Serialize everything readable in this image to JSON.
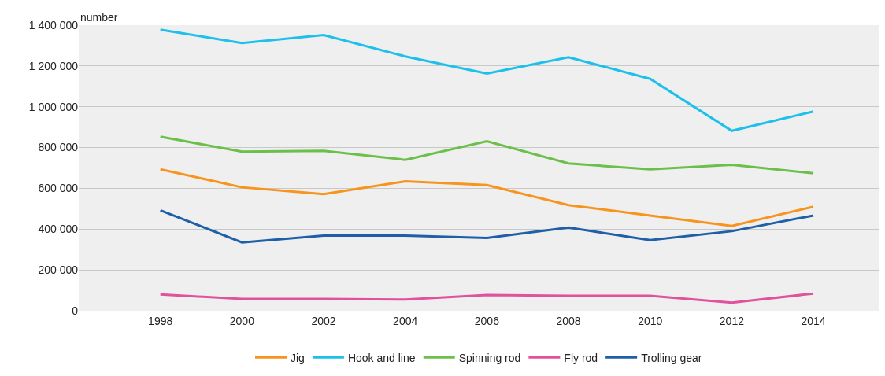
{
  "chart_data": {
    "type": "line",
    "ylabel": "number",
    "x": [
      1998,
      2000,
      2002,
      2004,
      2006,
      2008,
      2010,
      2012,
      2014
    ],
    "series": [
      {
        "name": "Jig",
        "color": "#f7941d",
        "values": [
          693000,
          605000,
          572000,
          634000,
          616000,
          518000,
          467000,
          416000,
          510000
        ]
      },
      {
        "name": "Hook and line",
        "color": "#1cc0ea",
        "values": [
          1378000,
          1312000,
          1352000,
          1247000,
          1163000,
          1243000,
          1137000,
          882000,
          977000
        ]
      },
      {
        "name": "Spinning rod",
        "color": "#6cbf4a",
        "values": [
          853000,
          780000,
          784000,
          740000,
          831000,
          722000,
          693000,
          715000,
          674000
        ]
      },
      {
        "name": "Fly rod",
        "color": "#e0529c",
        "values": [
          80000,
          58000,
          58000,
          55000,
          77000,
          73000,
          73000,
          40000,
          84000
        ]
      },
      {
        "name": "Trolling gear",
        "color": "#1f5fa8",
        "values": [
          492000,
          335000,
          368000,
          368000,
          357000,
          408000,
          346000,
          390000,
          467000
        ]
      }
    ],
    "xlim": [
      1996,
      2015.6
    ],
    "xticks": [
      1998,
      2000,
      2002,
      2004,
      2006,
      2008,
      2010,
      2012,
      2014
    ],
    "ylim": [
      0,
      1400000
    ],
    "yticks": [
      {
        "value": 0,
        "label": "0"
      },
      {
        "value": 200000,
        "label": "200 000"
      },
      {
        "value": 400000,
        "label": "400 000"
      },
      {
        "value": 600000,
        "label": "600 000"
      },
      {
        "value": 800000,
        "label": "800 000"
      },
      {
        "value": 1000000,
        "label": "1 000 000"
      },
      {
        "value": 1200000,
        "label": "1 200 000"
      },
      {
        "value": 1400000,
        "label": "1 400 000"
      }
    ],
    "grid": "y",
    "legend": "bottom",
    "marker": "none",
    "line_style": "solid"
  }
}
